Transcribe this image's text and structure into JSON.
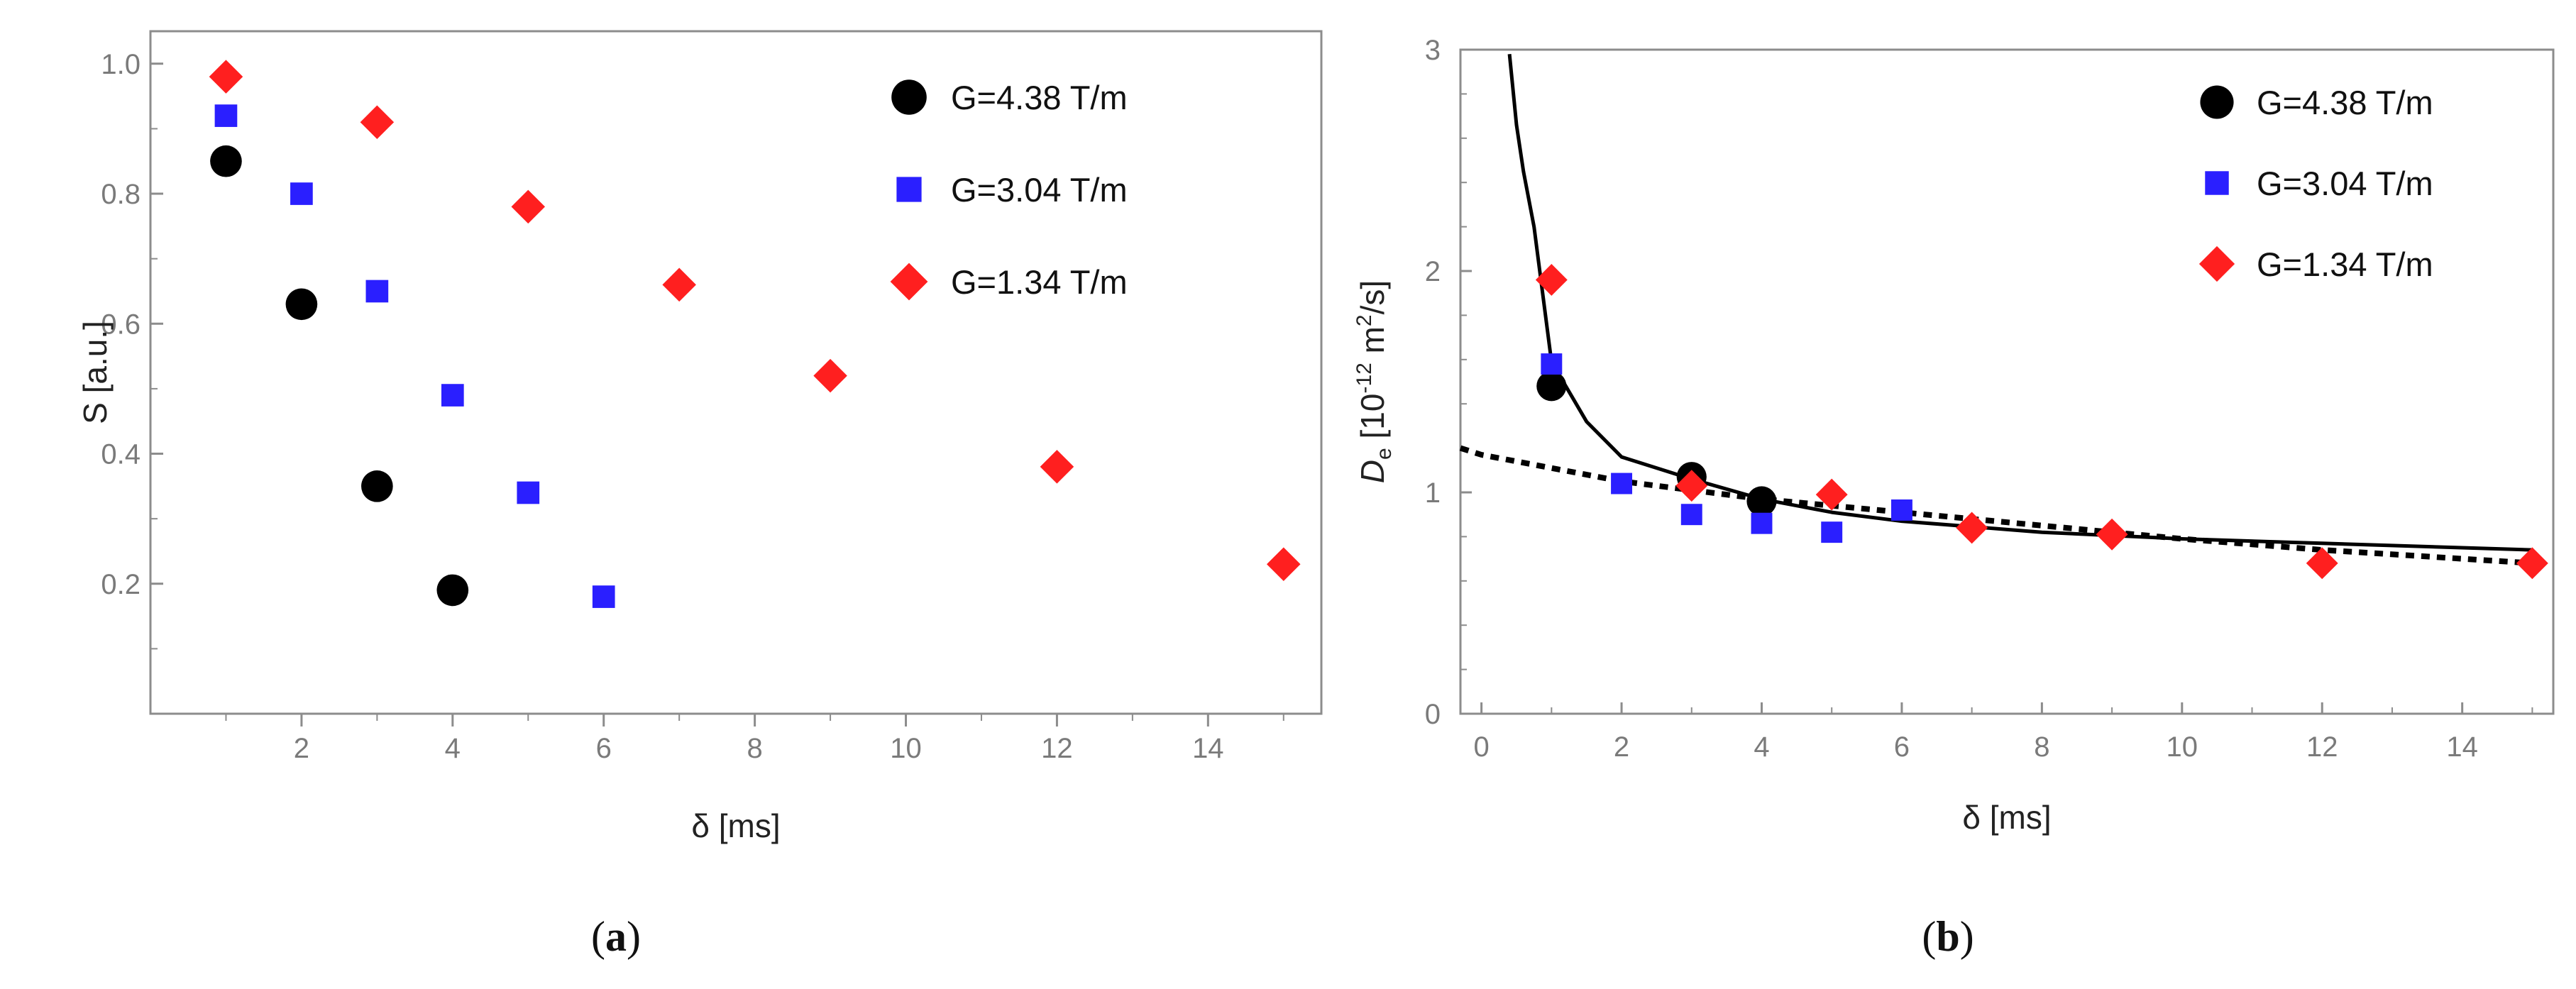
{
  "colors": {
    "g438": "#000000",
    "g304": "#2a1fff",
    "g134": "#ff1f1f",
    "frame": "#8c8c8c",
    "fit": "#000000"
  },
  "chart_data": [
    {
      "type": "scatter",
      "panel": "a",
      "panel_label": "a",
      "xlabel": "δ [ms]",
      "ylabel": "S [a.u.]",
      "xlim": [
        0,
        15.5
      ],
      "ylim": [
        0,
        1.05
      ],
      "xticks": [
        "2",
        "4",
        "6",
        "8",
        "10",
        "12",
        "14"
      ],
      "yticks": [
        "0.2",
        "0.4",
        "0.6",
        "0.8",
        "1.0"
      ],
      "legend_position": "top-right",
      "series": [
        {
          "name": "G=4.38 T/m",
          "marker": "circle",
          "x": [
            1,
            2,
            3,
            4
          ],
          "y": [
            0.85,
            0.63,
            0.35,
            0.19
          ]
        },
        {
          "name": "G=3.04 T/m",
          "marker": "square",
          "x": [
            1,
            2,
            3,
            4,
            5,
            6
          ],
          "y": [
            0.92,
            0.8,
            0.65,
            0.49,
            0.34,
            0.18
          ]
        },
        {
          "name": "G=1.34 T/m",
          "marker": "diamond",
          "x": [
            1,
            3,
            5,
            7,
            9,
            12,
            15
          ],
          "y": [
            0.98,
            0.91,
            0.78,
            0.66,
            0.52,
            0.38,
            0.23
          ]
        }
      ]
    },
    {
      "type": "scatter",
      "panel": "b",
      "panel_label": "b",
      "xlabel": "δ [ms]",
      "ylabel": {
        "symbol": "D",
        "sub": "e",
        "open": " [10",
        "exp": "-12",
        "mid": " m",
        "exp2": "2",
        "close": "/s]"
      },
      "xlim": [
        -0.3,
        15.3
      ],
      "ylim": [
        0,
        3
      ],
      "xticks": [
        "0",
        "2",
        "4",
        "6",
        "8",
        "10",
        "12",
        "14"
      ],
      "yticks": [
        "0",
        "1",
        "2",
        "3"
      ],
      "legend_position": "top-right",
      "series": [
        {
          "name": "G=4.38 T/m",
          "marker": "circle",
          "x": [
            1,
            3,
            4
          ],
          "y": [
            1.48,
            1.07,
            0.96
          ]
        },
        {
          "name": "G=3.04 T/m",
          "marker": "square",
          "x": [
            1,
            2,
            3,
            4,
            5,
            6
          ],
          "y": [
            1.58,
            1.04,
            0.9,
            0.86,
            0.82,
            0.92
          ]
        },
        {
          "name": "G=1.34 T/m",
          "marker": "diamond",
          "x": [
            1,
            3,
            5,
            7,
            9,
            12,
            15
          ],
          "y": [
            1.96,
            1.03,
            0.99,
            0.84,
            0.81,
            0.68,
            0.68
          ]
        }
      ],
      "fit_curves": [
        {
          "name": "solid fit",
          "style": "solid",
          "x": [
            0.4,
            0.5,
            0.6,
            0.75,
            1,
            1.5,
            2,
            3,
            4,
            5,
            6,
            8,
            10,
            12,
            15
          ],
          "y": [
            2.98,
            2.66,
            2.45,
            2.2,
            1.59,
            1.32,
            1.16,
            1.06,
            0.97,
            0.91,
            0.87,
            0.82,
            0.79,
            0.77,
            0.74
          ]
        },
        {
          "name": "dotted fit",
          "style": "dotted",
          "x": [
            -0.3,
            0,
            2,
            4,
            6,
            8,
            10,
            12,
            15
          ],
          "y": [
            1.2,
            1.17,
            1.05,
            0.97,
            0.91,
            0.85,
            0.79,
            0.74,
            0.68
          ]
        }
      ]
    }
  ]
}
